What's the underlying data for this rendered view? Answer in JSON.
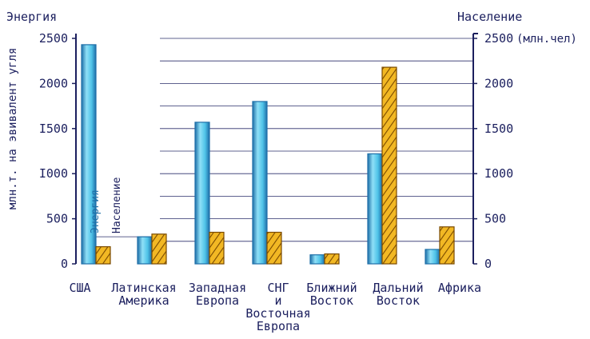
{
  "chart_data": {
    "type": "bar",
    "categories": [
      [
        "США"
      ],
      [
        "Латинская",
        "Америка"
      ],
      [
        "Западная",
        "Европа"
      ],
      [
        "СНГ",
        "и",
        "Восточная",
        "Европа"
      ],
      [
        "Ближний",
        "Восток"
      ],
      [
        "Дальний",
        "Восток"
      ],
      [
        "Африка"
      ]
    ],
    "series": [
      {
        "name": "Энергия",
        "axis": "left",
        "values": [
          2430,
          300,
          1570,
          1800,
          100,
          1220,
          160
        ],
        "color": "#4fc3e8"
      },
      {
        "name": "Население",
        "axis": "right",
        "values": [
          190,
          330,
          350,
          350,
          110,
          2180,
          410
        ],
        "color": "#f2b824"
      }
    ],
    "y_left": {
      "title": "Энергия",
      "label": "млн.т. на эвивалент угля",
      "ylim": [
        0,
        2500
      ],
      "ticks": [
        "0",
        "500",
        "I000",
        "I500",
        "2000",
        "2500"
      ]
    },
    "y_right": {
      "title": "Население",
      "unit": "(млн.чел)",
      "ylim": [
        0,
        2500
      ],
      "ticks": [
        "0",
        "500",
        "I000",
        "I500",
        "2000",
        "2500"
      ]
    },
    "series_labels": [
      "Энергия",
      "Население"
    ],
    "grid": true
  },
  "colors": {
    "ink": "#1b1f5e",
    "energy": "#4fc3e8",
    "energy_edge": "#1e6fa8",
    "population": "#f2b824",
    "population_hatch": "#7a4a00",
    "grid": "#2a2f6a"
  }
}
